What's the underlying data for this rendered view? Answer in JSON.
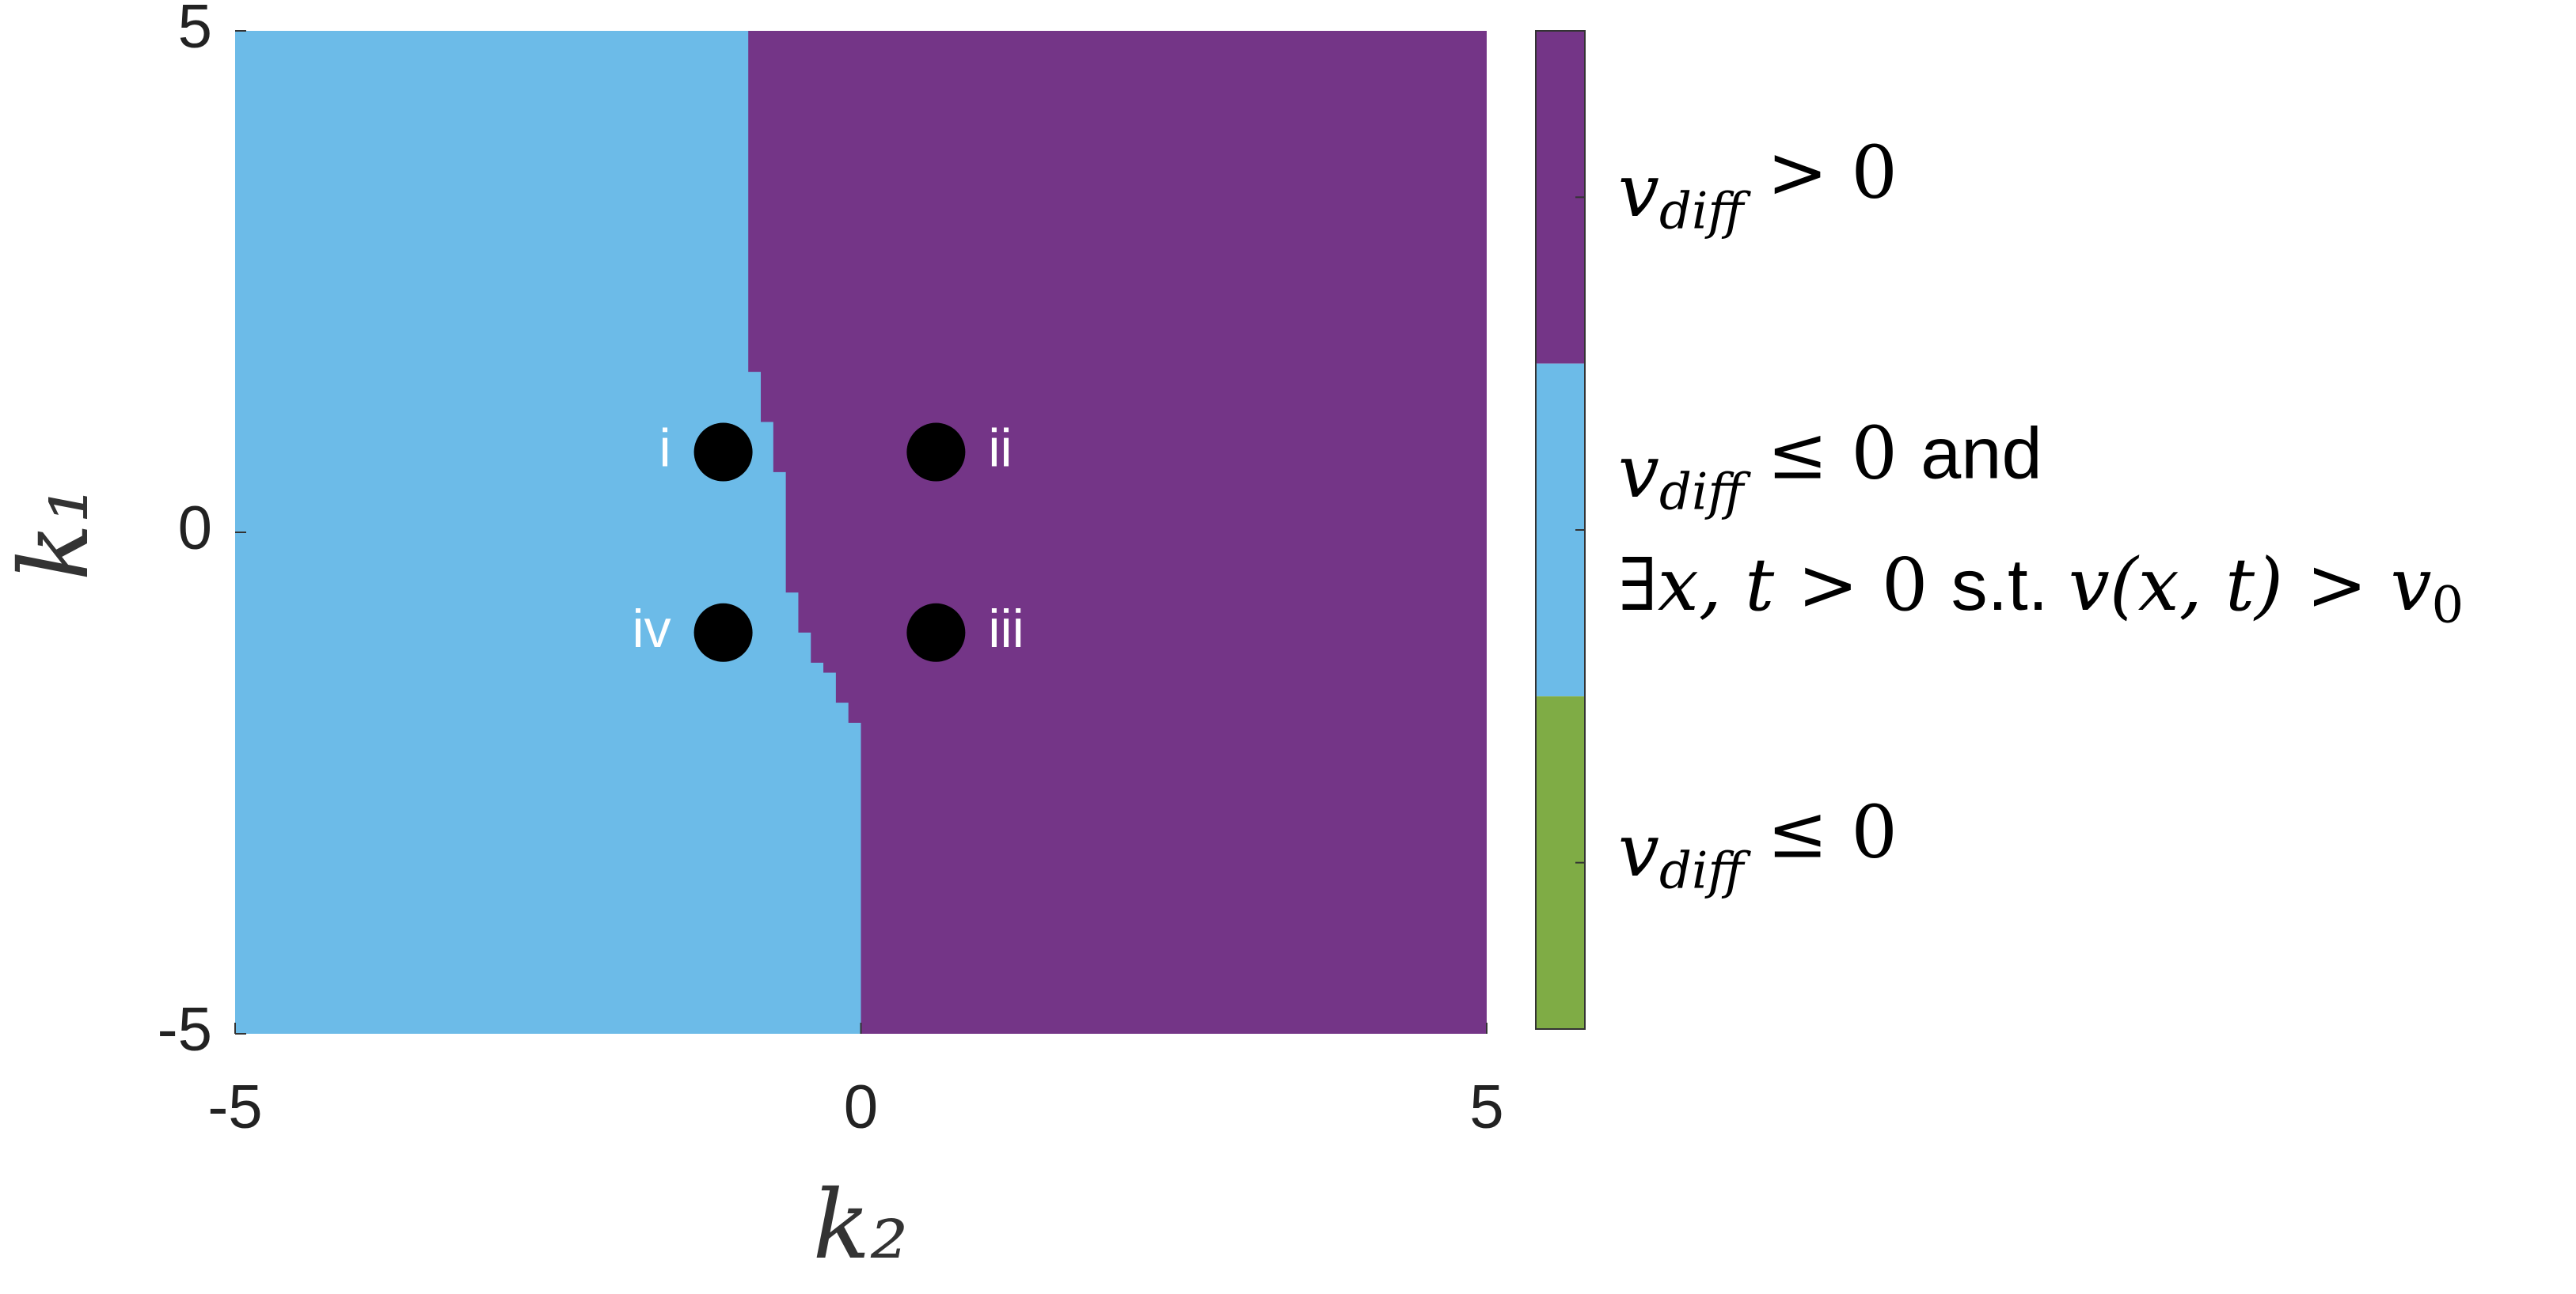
{
  "chart_data": {
    "type": "phase",
    "xlabel": "k₂",
    "ylabel": "k₁",
    "xlim": [
      -5,
      5
    ],
    "ylim": [
      -5,
      5
    ],
    "xticks": [
      -5,
      0,
      5
    ],
    "yticks": [
      -5,
      0,
      5
    ],
    "boundary": {
      "x": [
        -0.9,
        -0.9,
        -0.8,
        -0.8,
        -0.7,
        -0.7,
        -0.6,
        -0.6,
        -0.5,
        -0.5,
        -0.4,
        -0.4,
        -0.3,
        -0.3,
        -0.2,
        -0.2,
        -0.1,
        -0.1,
        0,
        0
      ],
      "y": [
        5,
        1.6,
        1.6,
        1.1,
        1.1,
        0.6,
        0.6,
        -0.6,
        -0.6,
        -1.0,
        -1.0,
        -1.3,
        -1.3,
        -1.4,
        -1.4,
        -1.7,
        -1.7,
        -1.9,
        -1.9,
        -5
      ],
      "left_color": "#6cbbe8",
      "right_color": "#743587"
    },
    "points": {
      "labels": [
        "i",
        "ii",
        "iii",
        "iv"
      ],
      "x": [
        -1.1,
        0.6,
        0.6,
        -1.1
      ],
      "y": [
        0.8,
        0.8,
        -1.0,
        -1.0
      ],
      "color": "#000000"
    },
    "colorbar": [
      {
        "color": "#743587",
        "label": [
          [
            {
              "text": "v",
              "font": "math-italic"
            },
            {
              "text": "diff",
              "font": "math-italic",
              "sub": true
            },
            {
              "text": " > 0",
              "font": "math"
            }
          ]
        ]
      },
      {
        "color": "#6cbbe8",
        "label": [
          [
            {
              "text": "v",
              "font": "math-italic"
            },
            {
              "text": "diff",
              "font": "math-italic",
              "sub": true
            },
            {
              "text": " ≤ 0 ",
              "font": "math"
            },
            {
              "text": "and",
              "font": "text"
            }
          ],
          [
            {
              "text": "∃",
              "font": "math"
            },
            {
              "text": "x, t",
              "font": "math-italic"
            },
            {
              "text": " > 0 ",
              "font": "math"
            },
            {
              "text": "s.t. ",
              "font": "text"
            },
            {
              "text": "v(x, t)",
              "font": "math-italic"
            },
            {
              "text": " > ",
              "font": "math"
            },
            {
              "text": "v",
              "font": "math-italic"
            },
            {
              "text": "0",
              "font": "math",
              "sub": true
            }
          ]
        ]
      },
      {
        "color": "#7fac45",
        "label": [
          [
            {
              "text": "v",
              "font": "math-italic"
            },
            {
              "text": "diff",
              "font": "math-italic",
              "sub": true
            },
            {
              "text": " ≤ 0",
              "font": "math"
            }
          ]
        ]
      }
    ]
  }
}
